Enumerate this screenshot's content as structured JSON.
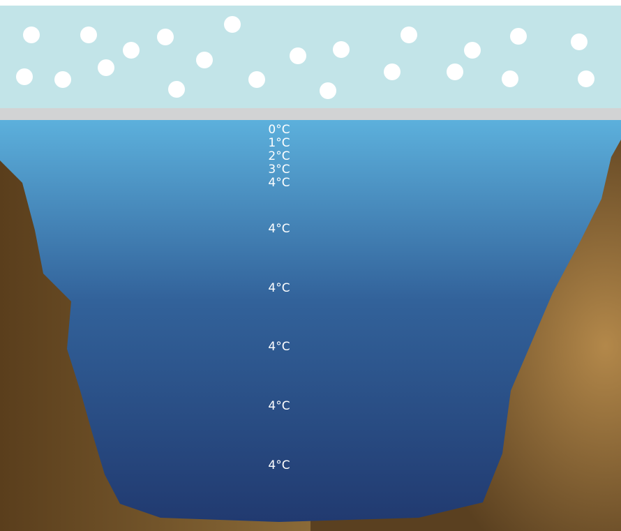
{
  "labels": [
    "0°C",
    "1°C",
    "2°C",
    "3°C",
    "4°C",
    "4°C",
    "4°C",
    "4°C",
    "4°C",
    "4°C"
  ]
}
